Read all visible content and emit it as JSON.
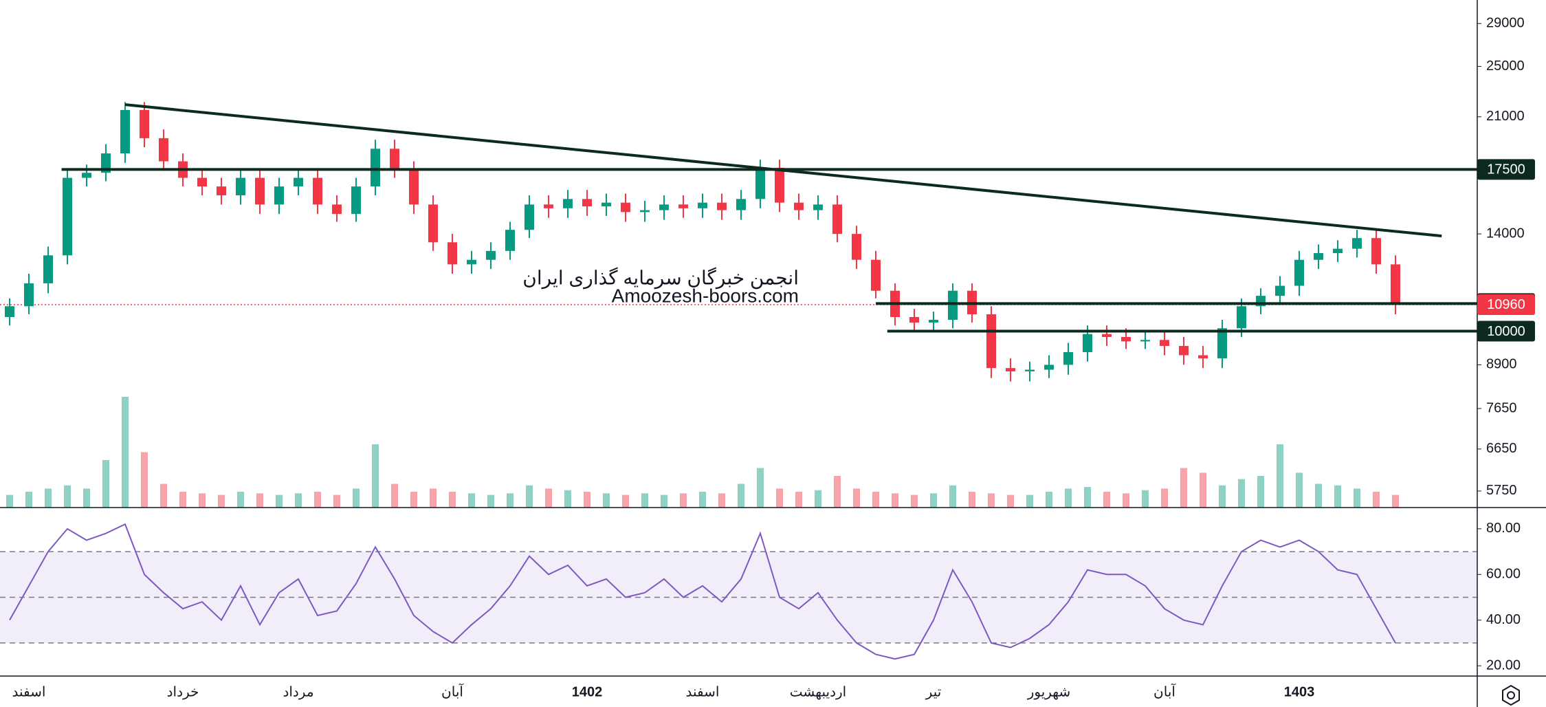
{
  "chart_data": {
    "type": "candlestick",
    "log_scale": true,
    "ylim": [
      5430,
      31460
    ],
    "yticks": [
      29000,
      25000,
      21000,
      14000,
      8900,
      7650,
      6650,
      5750
    ],
    "levels": [
      {
        "value": 17500,
        "start_index": 2.7
      },
      {
        "value": 11000,
        "start_index": 45
      },
      {
        "value": 10000,
        "start_index": 45.6
      }
    ],
    "current_price": 10960,
    "up_color": "#089981",
    "down_color": "#f23645",
    "level_color": "#0c2a1e",
    "trendline": {
      "start_index": 6,
      "start_price": 21900,
      "end_index": 74.4,
      "end_price": 13900
    },
    "watermark": [
      "انجمن خبرگان سرمایه گذاری ایران",
      "Amoozesh-boors.com"
    ],
    "categories": [
      null,
      "اسفند",
      null,
      null,
      null,
      null,
      null,
      null,
      null,
      "خرداد",
      null,
      null,
      null,
      null,
      null,
      "مرداد",
      null,
      null,
      null,
      null,
      null,
      null,
      null,
      "آبان",
      null,
      null,
      null,
      null,
      null,
      null,
      "1402",
      null,
      null,
      null,
      null,
      null,
      "اسفند",
      null,
      null,
      null,
      null,
      null,
      "اردیبهشت",
      null,
      null,
      null,
      null,
      null,
      "تیر",
      null,
      null,
      null,
      null,
      null,
      "شهریور",
      null,
      null,
      null,
      null,
      null,
      "آبان",
      null,
      null,
      null,
      null,
      null,
      null,
      "1403",
      null,
      null,
      null,
      null,
      null
    ],
    "open": [
      10500,
      10900,
      11800,
      13000,
      17000,
      17300,
      18500,
      21500,
      19500,
      18000,
      17000,
      16500,
      16000,
      17000,
      15500,
      16500,
      17000,
      15500,
      15000,
      16500,
      18800,
      17500,
      15500,
      13600,
      12600,
      12800,
      13200,
      14200,
      15500,
      15300,
      15800,
      15400,
      15600,
      15100,
      15200,
      15500,
      15300,
      15600,
      15200,
      15800,
      17600,
      15600,
      15200,
      15500,
      14000,
      12800,
      11500,
      10500,
      10300,
      10400,
      11500,
      10600,
      8800,
      8700,
      8750,
      8900,
      9300,
      9900,
      9800,
      9650,
      9700,
      9500,
      9200,
      9100,
      10100,
      10900,
      11300,
      11700,
      12800,
      13100,
      13300,
      13800,
      12600
    ],
    "high": [
      11200,
      12200,
      13400,
      17500,
      17800,
      19100,
      22100,
      22100,
      20100,
      18500,
      17500,
      17000,
      17500,
      17500,
      17000,
      17500,
      17500,
      16000,
      17000,
      19400,
      19400,
      18000,
      16000,
      14000,
      13200,
      13600,
      14600,
      16000,
      16000,
      16300,
      16300,
      16100,
      16100,
      15700,
      16000,
      16000,
      16100,
      16100,
      16300,
      18100,
      18100,
      16100,
      16000,
      16000,
      14400,
      13200,
      11800,
      10800,
      10700,
      11800,
      11800,
      10900,
      9100,
      9000,
      9200,
      9600,
      10200,
      10200,
      10100,
      10000,
      10000,
      9800,
      9500,
      10400,
      11200,
      11600,
      12100,
      13200,
      13500,
      13700,
      14200,
      14200,
      13000
    ],
    "low": [
      10200,
      10600,
      11400,
      12600,
      16500,
      16800,
      17900,
      18900,
      17500,
      16500,
      16000,
      15500,
      15500,
      15000,
      15000,
      16000,
      15000,
      14600,
      14600,
      16000,
      17000,
      15000,
      13200,
      12200,
      12200,
      12400,
      12800,
      13800,
      14800,
      14800,
      14900,
      14900,
      14600,
      14600,
      14700,
      14800,
      14800,
      14700,
      14700,
      15300,
      15100,
      14700,
      14700,
      13600,
      12400,
      11200,
      10200,
      10000,
      10000,
      10100,
      10300,
      8500,
      8400,
      8400,
      8500,
      8600,
      9000,
      9500,
      9400,
      9400,
      9200,
      8900,
      8800,
      8800,
      9800,
      10600,
      11000,
      11300,
      12400,
      12700,
      12900,
      12200,
      10600
    ],
    "close": [
      10900,
      11800,
      13000,
      17000,
      17300,
      18500,
      21500,
      19500,
      18000,
      17000,
      16500,
      16000,
      17000,
      15500,
      16500,
      17000,
      15500,
      15000,
      16500,
      18800,
      17500,
      15500,
      13600,
      12600,
      12800,
      13200,
      14200,
      15500,
      15300,
      15800,
      15400,
      15600,
      15100,
      15200,
      15500,
      15300,
      15600,
      15200,
      15800,
      17600,
      15600,
      15200,
      15500,
      14000,
      12800,
      11500,
      10500,
      10300,
      10400,
      11500,
      10600,
      8800,
      8700,
      8750,
      8900,
      9300,
      9900,
      9800,
      9650,
      9700,
      9500,
      9200,
      9100,
      10100,
      10900,
      11300,
      11700,
      12800,
      13100,
      13300,
      13800,
      12600,
      10960
    ],
    "volume": {
      "ylim": [
        0,
        100
      ],
      "values": [
        8,
        10,
        12,
        14,
        12,
        30,
        70,
        35,
        15,
        10,
        9,
        8,
        10,
        9,
        8,
        9,
        10,
        8,
        12,
        40,
        15,
        10,
        12,
        10,
        9,
        8,
        9,
        14,
        12,
        11,
        10,
        9,
        8,
        9,
        8,
        9,
        10,
        9,
        15,
        25,
        12,
        10,
        11,
        20,
        12,
        10,
        9,
        8,
        9,
        14,
        10,
        9,
        8,
        8,
        10,
        12,
        13,
        10,
        9,
        11,
        12,
        25,
        22,
        14,
        18,
        20,
        40,
        22,
        15,
        14,
        12,
        10,
        8
      ]
    },
    "rsi": {
      "color": "#7e57c2",
      "ylim": [
        15.5,
        89.3
      ],
      "levels": [
        30,
        50,
        70
      ],
      "yticks": [
        {
          "value": 80,
          "label": "80.00"
        },
        {
          "value": 60,
          "label": "60.00"
        },
        {
          "value": 40,
          "label": "40.00"
        },
        {
          "value": 20,
          "label": "20.00"
        }
      ],
      "values": [
        40,
        55,
        70,
        80,
        75,
        78,
        82,
        60,
        52,
        45,
        48,
        40,
        55,
        38,
        52,
        58,
        42,
        44,
        56,
        72,
        58,
        42,
        35,
        30,
        38,
        45,
        55,
        68,
        60,
        64,
        55,
        58,
        50,
        52,
        58,
        50,
        55,
        48,
        58,
        78,
        50,
        45,
        52,
        40,
        30,
        25,
        23,
        25,
        40,
        62,
        48,
        30,
        28,
        32,
        38,
        48,
        62,
        60,
        60,
        55,
        45,
        40,
        38,
        55,
        70,
        75,
        72,
        75,
        70,
        62,
        60,
        45,
        30
      ]
    }
  }
}
